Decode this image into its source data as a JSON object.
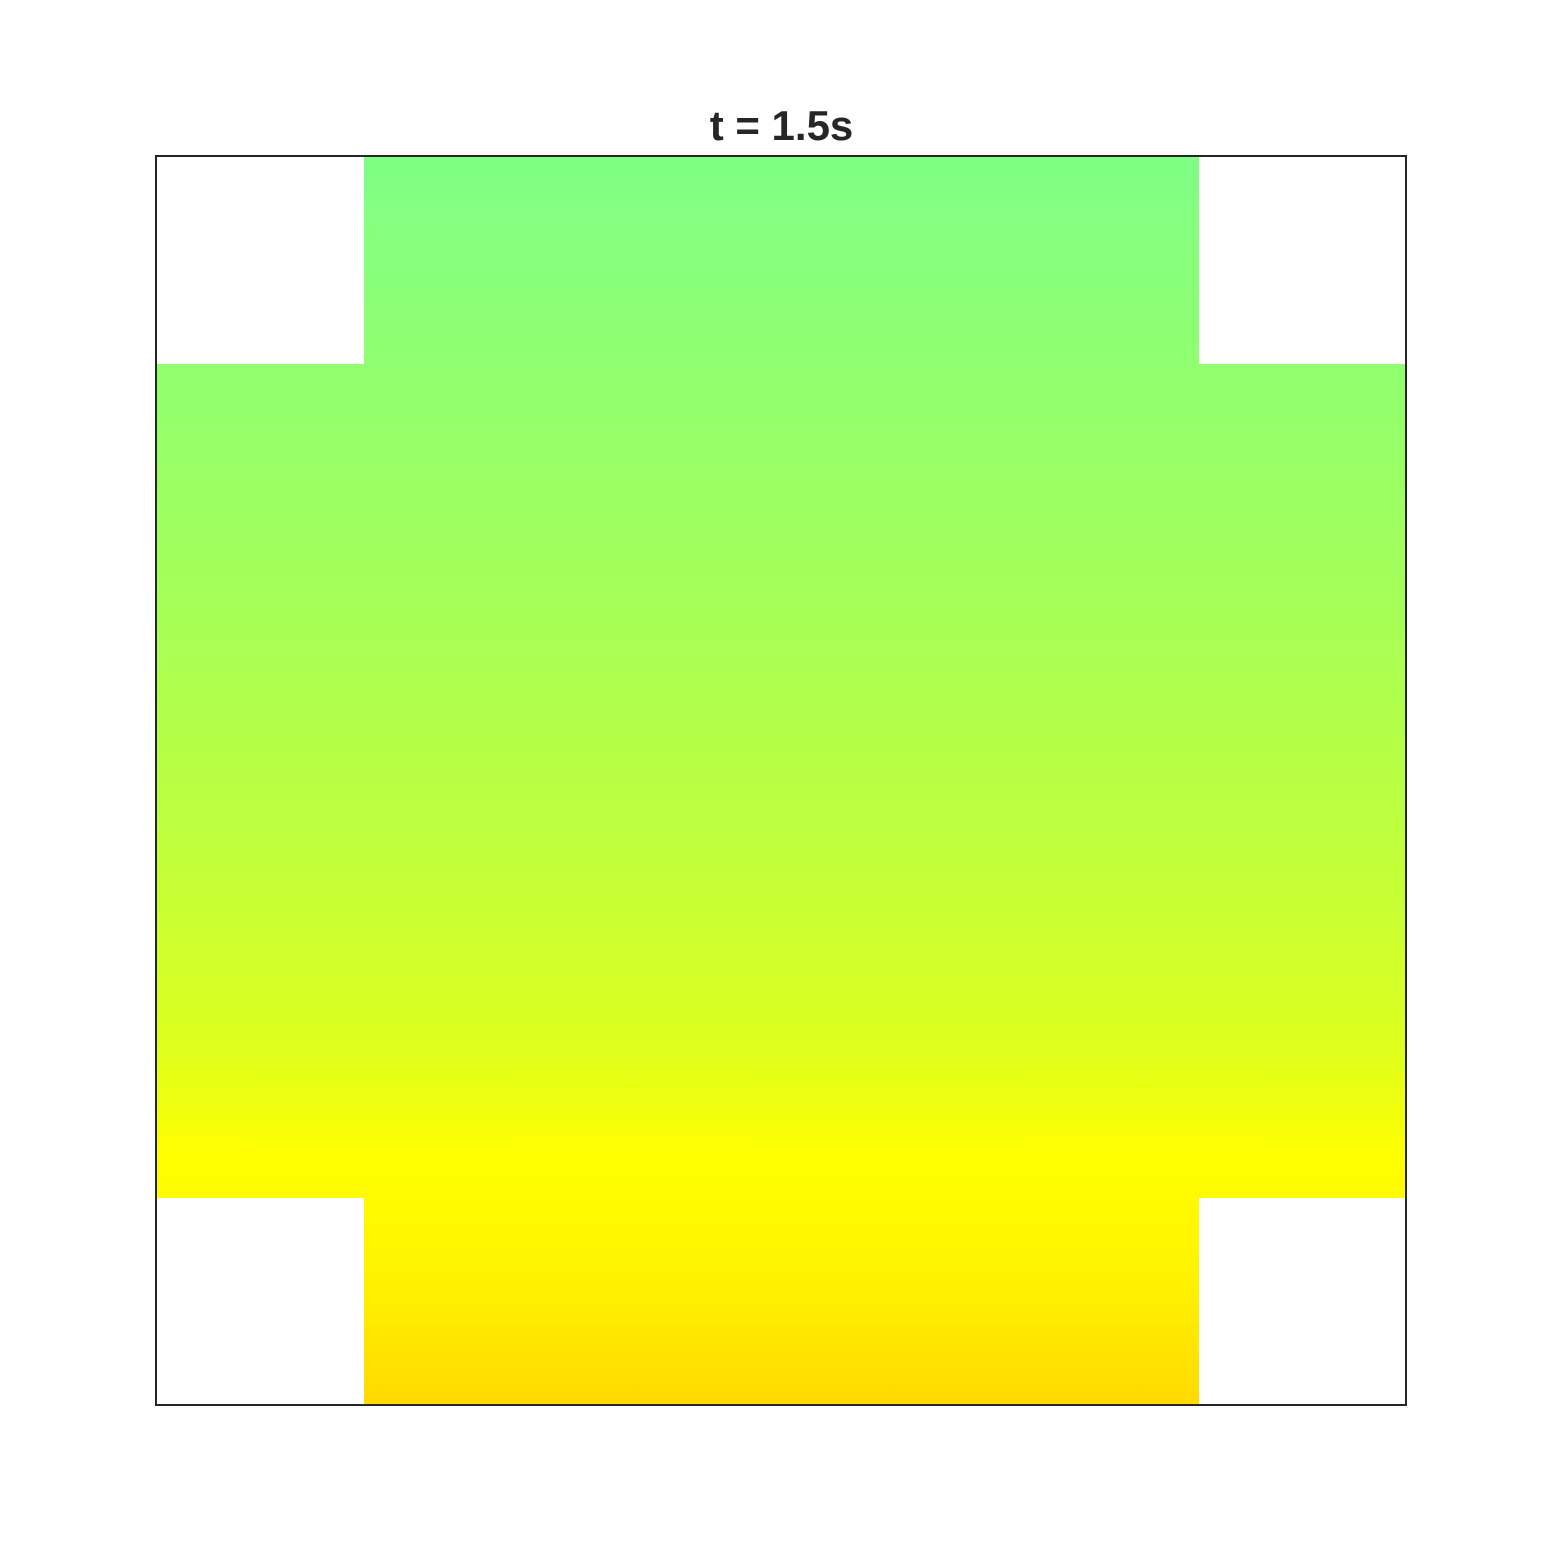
{
  "chart_data": {
    "type": "heatmap",
    "title": "t = 1.5s",
    "xlabel": "",
    "ylabel": "",
    "axes_ticks": false,
    "grid": false,
    "domain_shape": "plus-shaped region (full square with four corner squares removed)",
    "colormap": [
      "#80ff80",
      "#ffff00",
      "#ffd700"
    ],
    "colors": {
      "top": "#7fff86",
      "upper_middle": "#a4ff58",
      "middle": "#c8ff33",
      "lower_middle": "#f3ff09",
      "bottom_arm": "#ffff00",
      "bottom": "#ffd900",
      "frame": "#262626",
      "background": "#ffffff"
    }
  }
}
